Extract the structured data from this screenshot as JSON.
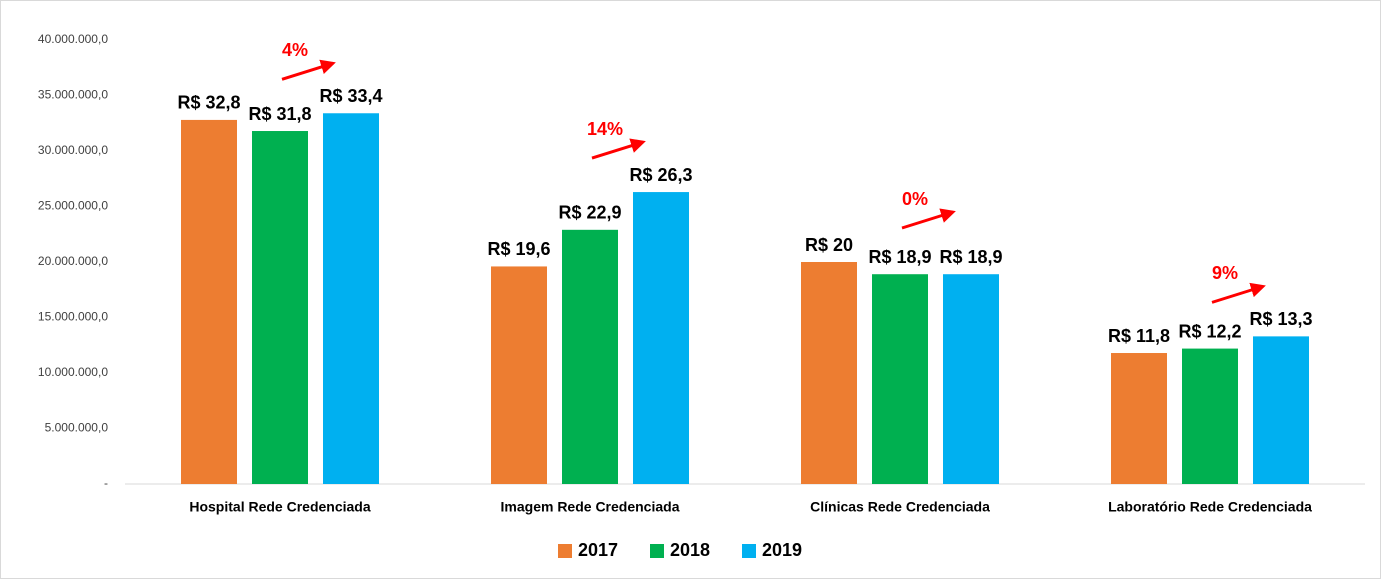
{
  "chart_data": {
    "type": "bar",
    "categories": [
      "Hospital Rede Credenciada",
      "Imagem Rede Credenciada",
      "Clínicas Rede Credenciada",
      "Laboratório Rede Credenciada"
    ],
    "series": [
      {
        "name": "2017",
        "color": "#ED7D31",
        "values": [
          32800000,
          19600000,
          20000000,
          11800000
        ],
        "value_labels": [
          "R$ 32,8",
          "R$ 19,6",
          "R$ 20",
          "R$ 11,8"
        ]
      },
      {
        "name": "2018",
        "color": "#00B050",
        "values": [
          31800000,
          22900000,
          18900000,
          12200000
        ],
        "value_labels": [
          "R$ 31,8",
          "R$ 22,9",
          "R$ 18,9",
          "R$ 12,2"
        ]
      },
      {
        "name": "2019",
        "color": "#00B0F0",
        "values": [
          33400000,
          26300000,
          18900000,
          13300000
        ],
        "value_labels": [
          "R$ 33,4",
          "R$ 26,3",
          "R$ 18,9",
          "R$ 13,3"
        ]
      }
    ],
    "annotations": [
      "4%",
      "14%",
      "0%",
      "9%"
    ],
    "ylim": [
      0,
      40000000
    ],
    "yticks": [
      {
        "value": 0,
        "label": "-"
      },
      {
        "value": 5000000,
        "label": "5.000.000,0"
      },
      {
        "value": 10000000,
        "label": "10.000.000,0"
      },
      {
        "value": 15000000,
        "label": "15.000.000,0"
      },
      {
        "value": 20000000,
        "label": "20.000.000,0"
      },
      {
        "value": 25000000,
        "label": "25.000.000,0"
      },
      {
        "value": 30000000,
        "label": "30.000.000,0"
      },
      {
        "value": 35000000,
        "label": "35.000.000,0"
      },
      {
        "value": 40000000,
        "label": "40.000.000,0"
      }
    ],
    "grid": false,
    "legend": "bottom"
  }
}
